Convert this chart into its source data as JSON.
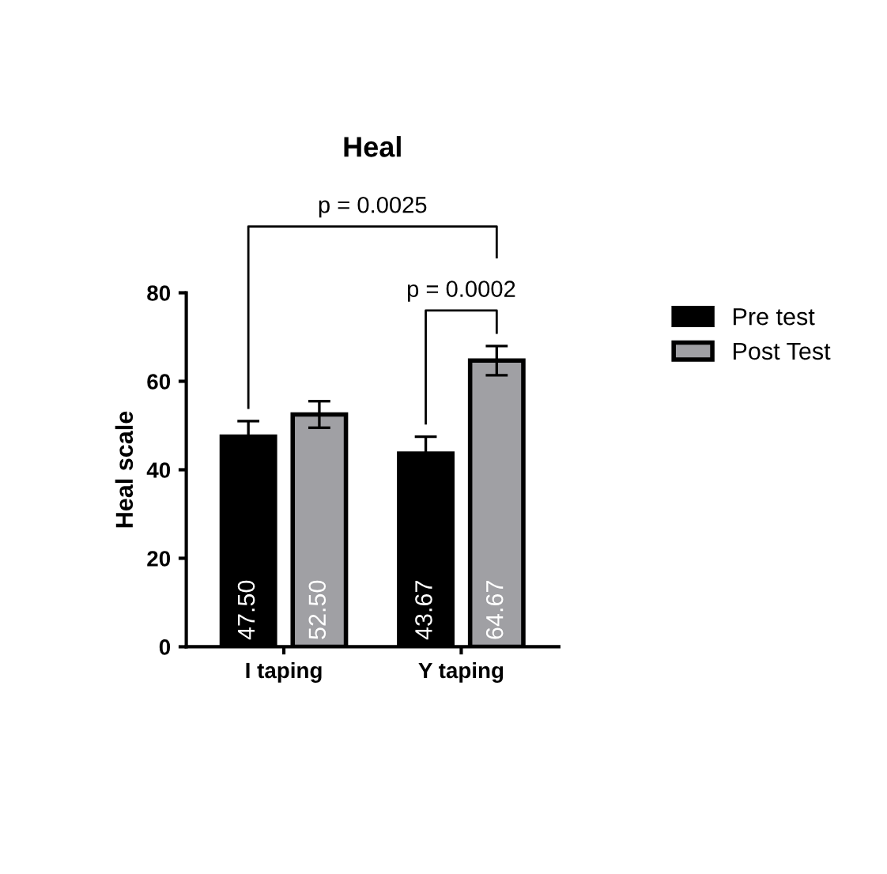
{
  "chart_data": {
    "type": "bar",
    "title": "Heal",
    "ylabel": "Heal scale",
    "categories": [
      "I taping",
      "Y taping"
    ],
    "series": [
      {
        "name": "Pre test",
        "color": "#000000",
        "values": [
          47.5,
          43.67
        ],
        "errors": [
          3.5,
          3.8
        ],
        "value_labels": [
          "47.50",
          "43.67"
        ]
      },
      {
        "name": "Post Test",
        "color": "#a0a0a4",
        "values": [
          52.5,
          64.67
        ],
        "errors": [
          3,
          3.3
        ],
        "value_labels": [
          "52.50",
          "64.67"
        ]
      }
    ],
    "ylim": [
      0,
      80
    ],
    "yticks": [
      0,
      20,
      40,
      60,
      80
    ],
    "grid": false,
    "legend": "right",
    "annotations": [
      "p = 0.0025",
      "p = 0.0002"
    ]
  }
}
